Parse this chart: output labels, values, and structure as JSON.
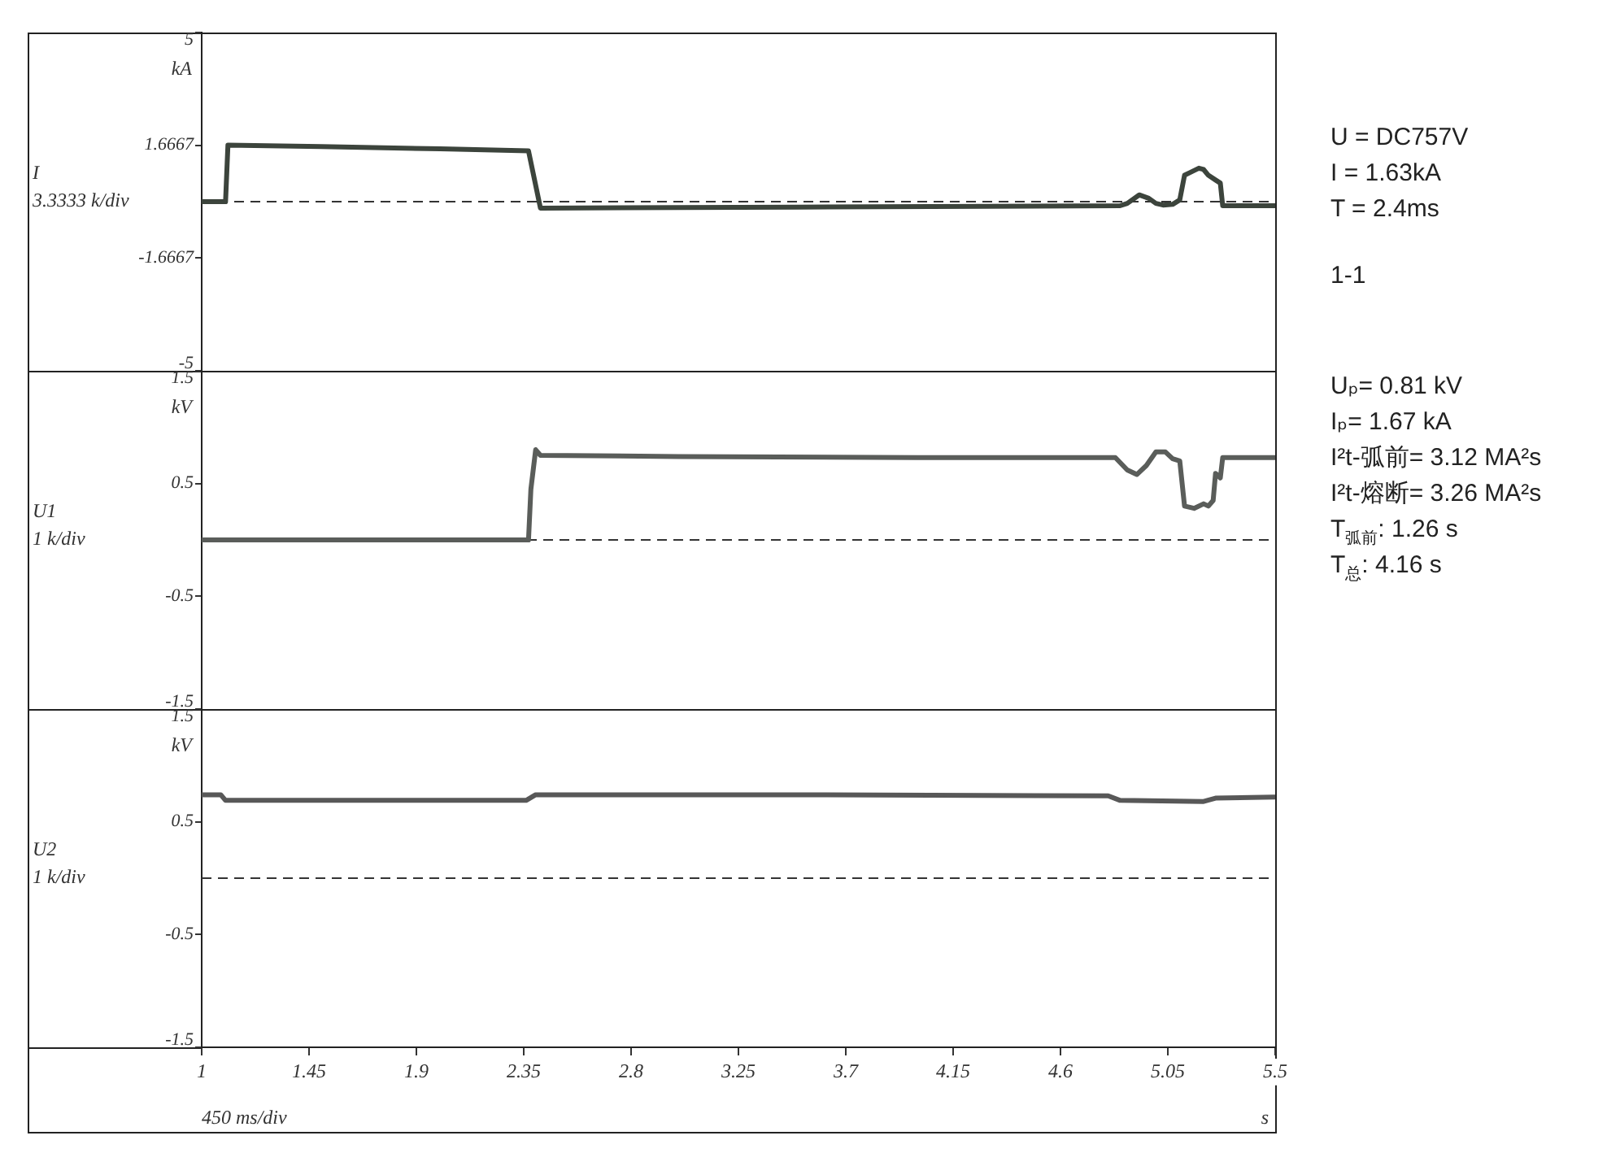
{
  "chart_data": [
    {
      "type": "line",
      "ylabel": "I\n3.3333 k/div",
      "annotations": [
        "kA"
      ],
      "x": [
        1,
        1.1,
        1.11,
        1.5,
        2.0,
        2.37,
        2.42,
        3.5,
        4.85,
        4.88,
        4.93,
        4.97,
        5.0,
        5.03,
        5.07,
        5.1,
        5.12,
        5.14,
        5.18,
        5.2,
        5.22,
        5.25,
        5.27,
        5.28,
        5.5
      ],
      "series": [
        {
          "color": "#3c443c",
          "values": [
            0,
            0,
            1.67,
            1.63,
            1.56,
            1.5,
            -0.19,
            -0.16,
            -0.12,
            -0.05,
            0.2,
            0.1,
            -0.05,
            -0.1,
            -0.08,
            0.05,
            0.78,
            0.85,
            0.99,
            0.95,
            0.78,
            0.64,
            0.55,
            -0.12,
            -0.12
          ]
        }
      ],
      "xlim": [
        1,
        5.5
      ],
      "ylim": [
        -5,
        5
      ],
      "yticks": [
        -5,
        -1.6667,
        1.6667,
        5
      ],
      "tick_labels": "y",
      "ref_lines": [
        {
          "axis": "y",
          "value": 0,
          "line_style": "dashed",
          "color": "#333333"
        }
      ]
    },
    {
      "type": "line",
      "ylabel": "U1\n1 k/div",
      "annotations": [
        "kV"
      ],
      "x": [
        1,
        2.37,
        2.38,
        2.4,
        2.42,
        3.0,
        4.0,
        4.83,
        4.88,
        4.92,
        4.96,
        5.0,
        5.04,
        5.07,
        5.1,
        5.12,
        5.16,
        5.2,
        5.22,
        5.24,
        5.25,
        5.27,
        5.28,
        5.5
      ],
      "series": [
        {
          "color": "#5a5d5a",
          "values": [
            0,
            0,
            0.45,
            0.8,
            0.75,
            0.74,
            0.73,
            0.73,
            0.62,
            0.58,
            0.66,
            0.78,
            0.78,
            0.72,
            0.7,
            0.3,
            0.28,
            0.32,
            0.3,
            0.35,
            0.59,
            0.55,
            0.73,
            0.73
          ]
        }
      ],
      "xlim": [
        1,
        5.5
      ],
      "ylim": [
        -1.5,
        1.5
      ],
      "yticks": [
        -1.5,
        -0.5,
        0.5,
        1.5
      ],
      "tick_labels": "y",
      "ref_lines": [
        {
          "axis": "y",
          "value": 0,
          "line_style": "dashed",
          "color": "#333333"
        }
      ]
    },
    {
      "type": "line",
      "ylabel": "U2\n1 k/div",
      "xlabel": "450 ms/div",
      "annotations": [
        "kV",
        "s"
      ],
      "x": [
        1,
        1.08,
        1.1,
        2.0,
        2.36,
        2.4,
        3.5,
        4.8,
        4.85,
        5.2,
        5.25,
        5.5
      ],
      "series": [
        {
          "color": "#585858",
          "values": [
            0.74,
            0.74,
            0.69,
            0.69,
            0.69,
            0.74,
            0.74,
            0.73,
            0.69,
            0.68,
            0.71,
            0.72
          ]
        }
      ],
      "xlim": [
        1,
        5.5
      ],
      "xticks": [
        1,
        1.45,
        1.9,
        2.35,
        2.8,
        3.25,
        3.7,
        4.15,
        4.6,
        5.05,
        5.5
      ],
      "ylim": [
        -1.5,
        1.5
      ],
      "yticks": [
        -1.5,
        -0.5,
        0.5,
        1.5
      ],
      "ref_lines": [
        {
          "axis": "y",
          "value": 0,
          "line_style": "dashed",
          "color": "#333333"
        }
      ]
    },
    {
      "type": "other",
      "annotations": [
        "U = DC757V",
        "I = 1.63kA",
        "T = 2.4ms",
        "1-1",
        "Uₚ= 0.81 kV",
        "Iₚ= 1.67 kA",
        "I²t-弧前= 3.12 MA²s",
        "I²t-熔断= 3.26 MA²s",
        "T$_{弧前}$: 1.26 s",
        "T$_{总}$: 4.16 s"
      ]
    }
  ]
}
